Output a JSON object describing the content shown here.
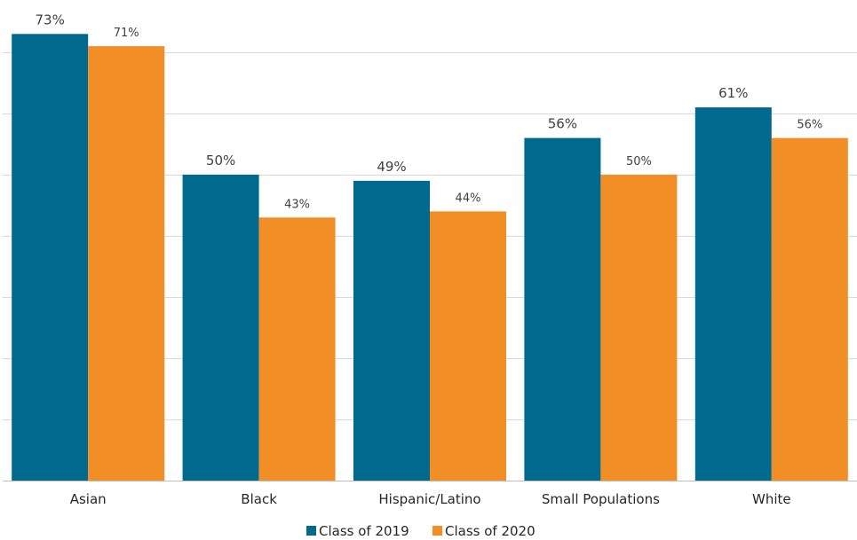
{
  "chart_data": {
    "type": "bar",
    "title": "",
    "xlabel": "",
    "ylabel": "",
    "categories": [
      "Asian",
      "Black",
      "Hispanic/Latino",
      "Small Populations",
      "White"
    ],
    "series": [
      {
        "name": "Class of 2019",
        "color": "#006a8e",
        "values": [
          73,
          50,
          49,
          56,
          61
        ],
        "labels": [
          "73%",
          "50%",
          "49%",
          "56%",
          "61%"
        ]
      },
      {
        "name": "Class of 2020",
        "color": "#f28e26",
        "values": [
          71,
          43,
          44,
          50,
          56
        ],
        "labels": [
          "71%",
          "43%",
          "44%",
          "50%",
          "56%"
        ]
      }
    ],
    "ylim": [
      0,
      80
    ],
    "y_gridlines": [
      10,
      20,
      30,
      40,
      50,
      60,
      70,
      80
    ],
    "y_tick_labels_shown": false,
    "grid": true,
    "legend_position": "bottom"
  }
}
